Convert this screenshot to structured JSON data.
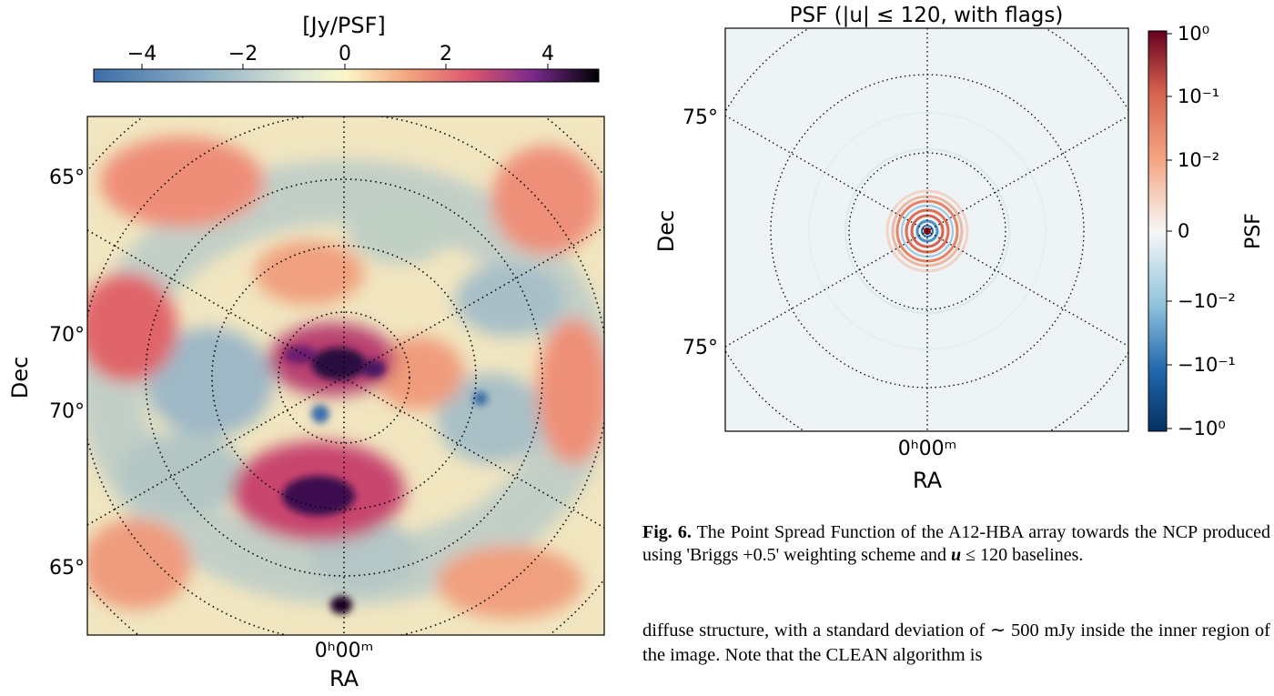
{
  "left_figure": {
    "colorbar": {
      "label": "[Jy/PSF]",
      "ticks": [
        "−4",
        "−2",
        "0",
        "2",
        "4"
      ],
      "range": [
        -5,
        5
      ]
    },
    "dec_labels": [
      "65°",
      "70°",
      "70°",
      "65°"
    ],
    "ra_label": "0ʰ00ᵐ",
    "xlabel": "RA",
    "ylabel": "Dec"
  },
  "right_figure": {
    "title": "PSF (|u| ≤ 120, with flags)",
    "dec_labels": [
      "75°",
      "75°"
    ],
    "ra_label": "0ʰ00ᵐ",
    "xlabel": "RA",
    "ylabel": "Dec",
    "colorbar": {
      "label": "PSF",
      "ticks": [
        "10⁰",
        "10⁻¹",
        "10⁻²",
        "0",
        "−10⁻²",
        "−10⁻¹",
        "−10⁰"
      ],
      "scale": "symlog"
    }
  },
  "caption": {
    "figure_label": "Fig. 6.",
    "text_before": " The Point Spread Function of the A12-HBA array towards the NCP produced using 'Briggs +0.5' weighting scheme and ",
    "symbol": "u",
    "text_after": " ≤ 120 baselines."
  },
  "body_text": "diffuse structure, with a standard deviation of ∼ 500 mJy inside the inner region of the image. Note that the CLEAN algorithm is",
  "colors": {
    "cmap_low": "#3b6ea8",
    "cmap_mid": "#fbf6c8",
    "cmap_high": "#000004",
    "psf_red": "#b2182b",
    "psf_blue": "#2166ac"
  }
}
